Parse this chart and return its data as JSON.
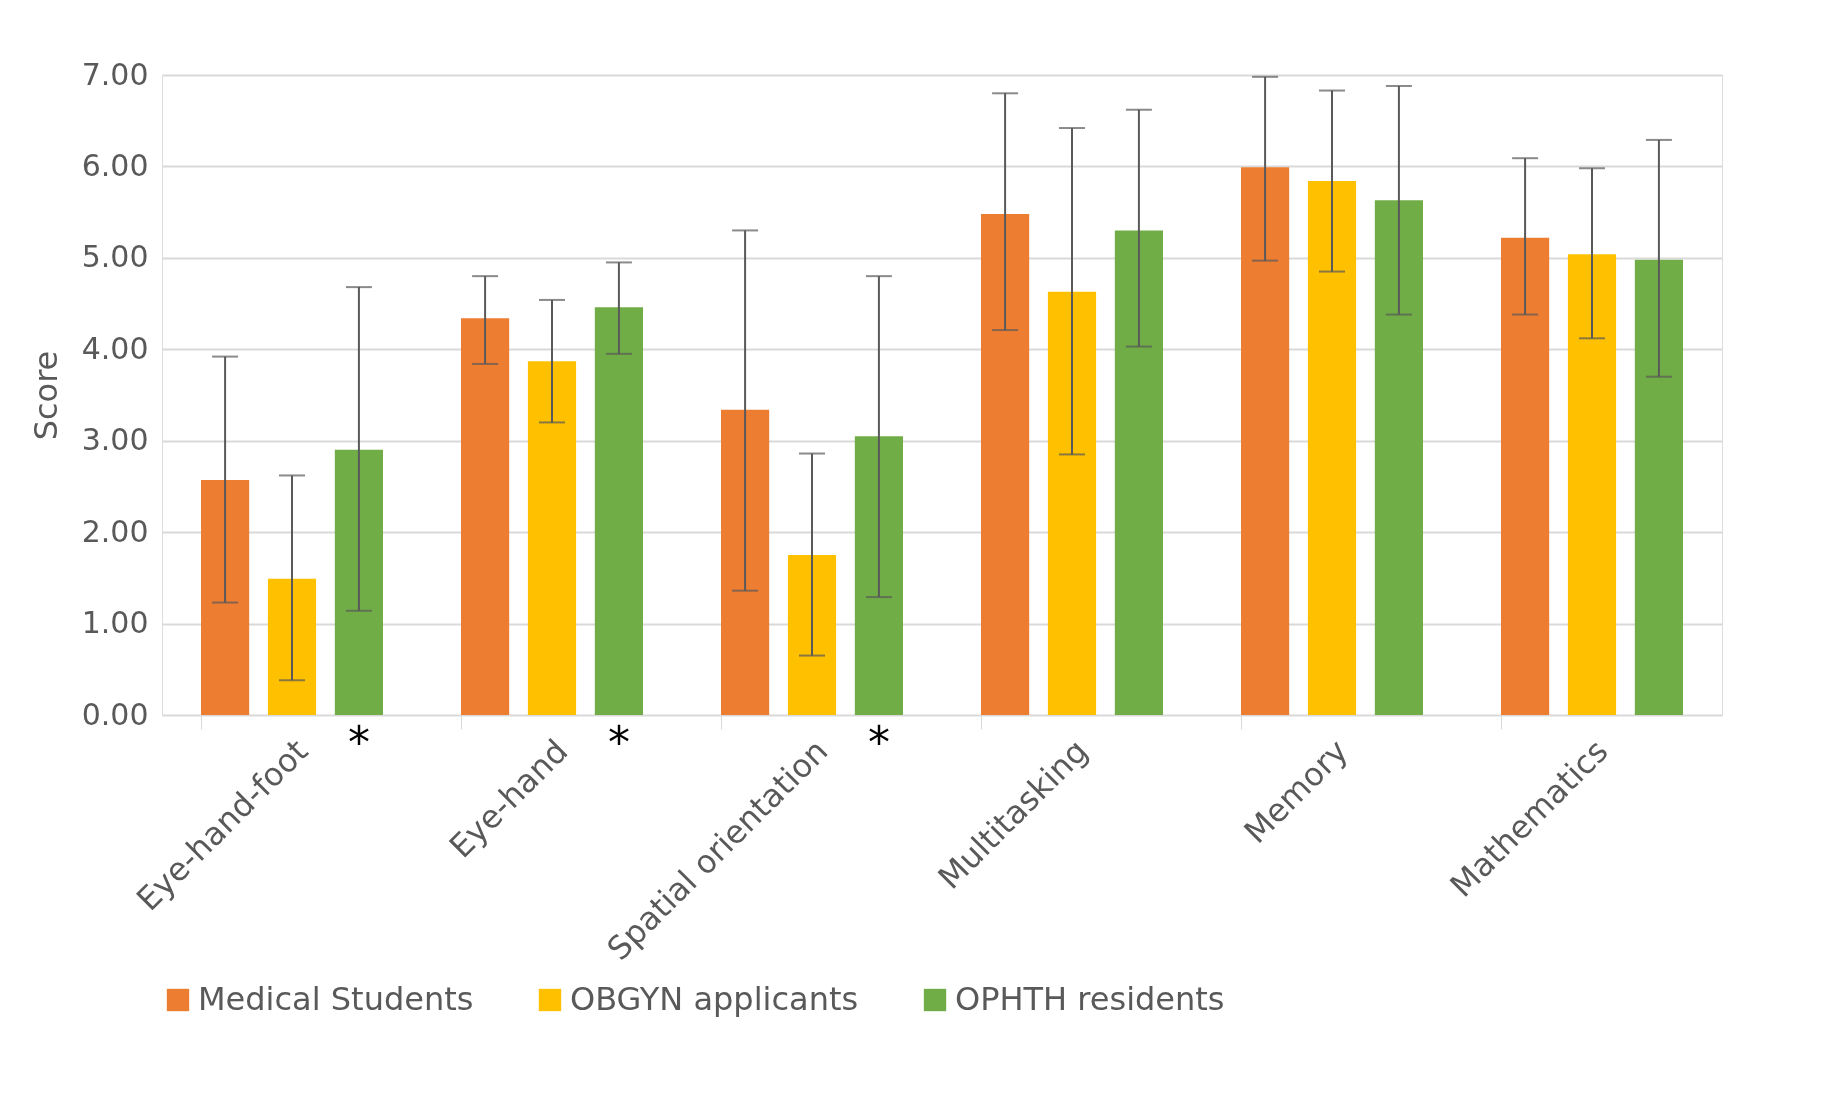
{
  "chart_data": {
    "type": "bar",
    "ylabel": "Score",
    "categories": [
      "Eye-hand-foot",
      "Eye-hand",
      "Spatial orientation",
      "Multitasking",
      "Memory",
      "Mathematics"
    ],
    "series": [
      {
        "name": "Medical Students",
        "color": "#ed7d31",
        "values": [
          2.57,
          4.34,
          3.34,
          5.48,
          5.99,
          5.22
        ],
        "errors": [
          [
            1.23,
            3.92
          ],
          [
            3.84,
            4.8
          ],
          [
            1.36,
            5.3
          ],
          [
            4.21,
            6.8
          ],
          [
            4.97,
            6.98
          ],
          [
            4.38,
            6.09
          ]
        ]
      },
      {
        "name": "OBGYN applicants",
        "color": "#ffc000",
        "values": [
          1.49,
          3.87,
          1.75,
          4.63,
          5.84,
          5.04
        ],
        "errors": [
          [
            0.38,
            2.62
          ],
          [
            3.2,
            4.54
          ],
          [
            0.65,
            2.86
          ],
          [
            2.85,
            6.42
          ],
          [
            4.85,
            6.83
          ],
          [
            4.12,
            5.98
          ]
        ]
      },
      {
        "name": "OPHTH residents",
        "color": "#70ad47",
        "values": [
          2.9,
          4.46,
          3.05,
          5.3,
          5.63,
          4.98
        ],
        "errors": [
          [
            1.14,
            4.68
          ],
          [
            3.95,
            4.95
          ],
          [
            1.29,
            4.8
          ],
          [
            4.03,
            6.62
          ],
          [
            4.38,
            6.88
          ],
          [
            3.7,
            6.29
          ]
        ]
      }
    ],
    "ylim": [
      0,
      7
    ],
    "yticks": [
      {
        "value": 0,
        "label": "0.00"
      },
      {
        "value": 1,
        "label": "1.00"
      },
      {
        "value": 2,
        "label": "2.00"
      },
      {
        "value": 3,
        "label": "3.00"
      },
      {
        "value": 4,
        "label": "4.00"
      },
      {
        "value": 5,
        "label": "5.00"
      },
      {
        "value": 6,
        "label": "6.00"
      },
      {
        "value": 7,
        "label": "7.00"
      }
    ],
    "grid": "y",
    "legend": "bottom",
    "annotations": [
      "*",
      "*",
      "*"
    ]
  }
}
